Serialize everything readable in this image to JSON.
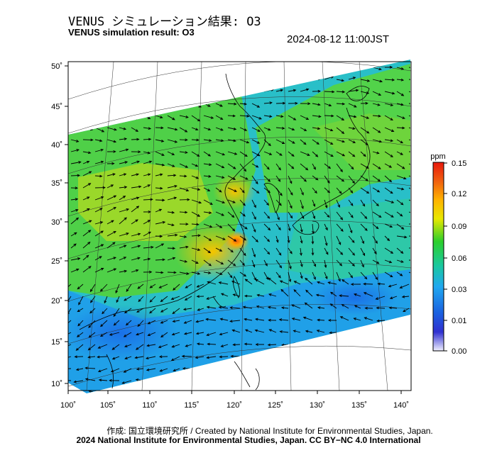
{
  "title_jp": "VENUS シミュレーション結果: O3",
  "title_en": "VENUS simulation result: O3",
  "timestamp": "2024-08-12 11:00JST",
  "colorbar": {
    "unit": "ppm",
    "ticks": [
      "0.15",
      "0.12",
      "0.09",
      "0.06",
      "0.03",
      "0.01",
      "0.00"
    ]
  },
  "axes": {
    "lon_labels": [
      "100˚",
      "105˚",
      "110˚",
      "115˚",
      "120˚",
      "125˚",
      "130˚",
      "135˚",
      "140˚"
    ],
    "lat_labels": [
      "50˚",
      "45˚",
      "40˚",
      "35˚",
      "30˚",
      "25˚",
      "20˚",
      "15˚",
      "10˚"
    ]
  },
  "credit_line1": "作成: 国立環境研究所 / Created by National Institute for Environmental Studies, Japan.",
  "credit_line2": "2024 National Institute for Environmental Studies, Japan. CC BY−NC 4.0 International"
}
